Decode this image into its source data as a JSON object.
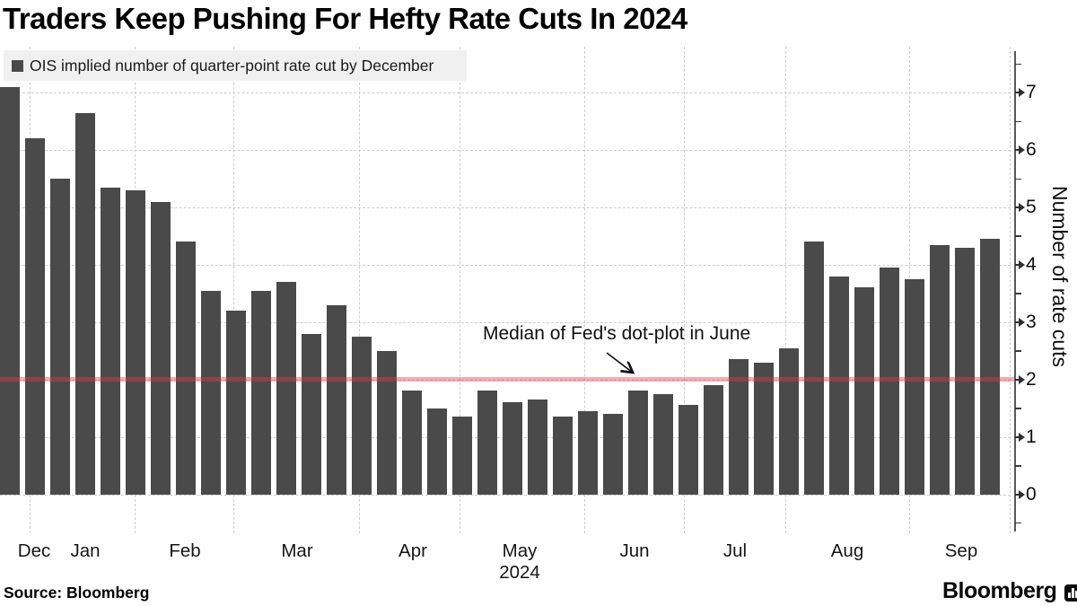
{
  "title": "Traders Keep Pushing For Hefty Rate Cuts In 2024",
  "legend": {
    "swatch_color": "#4a4a4a",
    "label": "OIS implied number of quarter-point rate cut by December"
  },
  "annotation": {
    "text": "Median of Fed's dot-plot in June"
  },
  "source": "Source: Bloomberg",
  "brand": {
    "wordmark": "Bloomberg",
    "icon": "bar-chart-icon"
  },
  "chart_data": {
    "type": "bar",
    "series_label": "OIS implied number of quarter-point rate cut by December",
    "bar_color": "#4a4a4a",
    "values": [
      7.1,
      6.2,
      5.5,
      6.65,
      5.35,
      5.3,
      5.1,
      4.4,
      3.55,
      3.2,
      3.55,
      3.7,
      2.8,
      3.3,
      2.75,
      2.5,
      1.8,
      1.5,
      1.35,
      1.8,
      1.6,
      1.65,
      1.35,
      1.45,
      1.4,
      1.8,
      1.75,
      1.55,
      1.9,
      2.35,
      2.3,
      2.55,
      4.4,
      3.8,
      3.6,
      3.95,
      3.75,
      4.35,
      4.3,
      4.45
    ],
    "months": [
      {
        "label": "Dec",
        "center": 38
      },
      {
        "label": "Jan",
        "center": 95
      },
      {
        "label": "Feb",
        "center": 206
      },
      {
        "label": "Mar",
        "center": 331
      },
      {
        "label": "Apr",
        "center": 460
      },
      {
        "label": "May",
        "center": 579
      },
      {
        "label": "Jun",
        "center": 707
      },
      {
        "label": "Jul",
        "center": 819
      },
      {
        "label": "Aug",
        "center": 944
      },
      {
        "label": "Sep",
        "center": 1071
      }
    ],
    "month_boundaries": [
      33,
      150,
      260,
      400,
      512,
      651,
      762,
      875,
      1013,
      1125
    ],
    "year_label": "2024",
    "year_center": 579,
    "ylabel": "Number of rate cuts",
    "yticks": [
      0,
      1,
      2,
      3,
      4,
      5,
      6,
      7
    ],
    "ylim": [
      -0.5,
      7.5
    ],
    "grid": true,
    "legend_position": "top-left",
    "ref_line": {
      "value": 2,
      "label": "Median of Fed's dot-plot in June",
      "color": "rgba(231,56,82,0.42)"
    }
  }
}
